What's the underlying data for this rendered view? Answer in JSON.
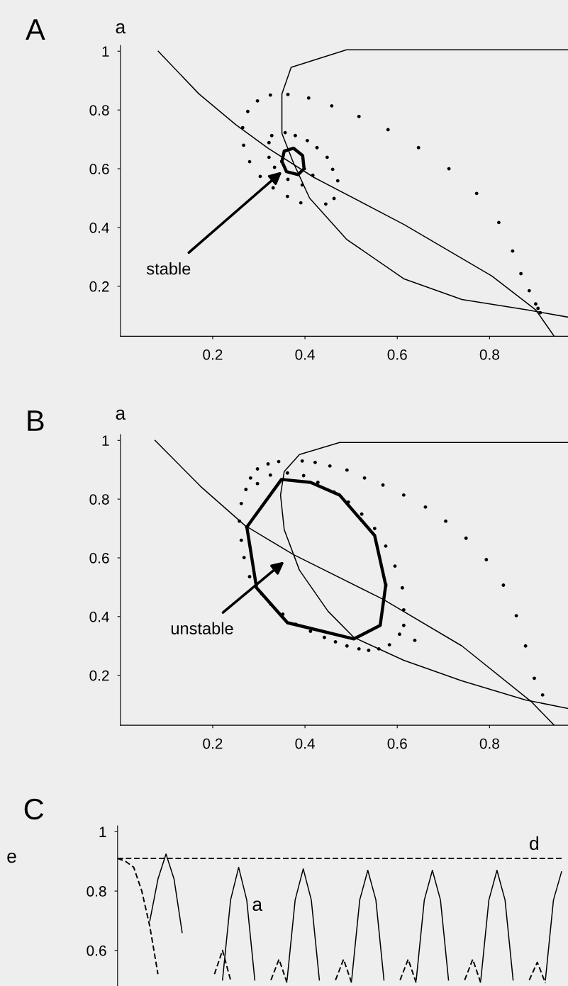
{
  "chart_data": [
    {
      "type": "line",
      "title": "A",
      "ylabel": "a",
      "xlim": [
        0,
        0.97
      ],
      "ylim": [
        0.03,
        1.02
      ],
      "xticks": [
        0.2,
        0.4,
        0.6,
        0.8
      ],
      "yticks": [
        0.2,
        0.4,
        0.6,
        0.8,
        1
      ],
      "annotations": [
        {
          "text": "stable",
          "x": 0.35,
          "y": 0.59
        }
      ],
      "series": [
        {
          "color": "#000000",
          "x": [
            0.082,
            0.17,
            0.25,
            0.32,
            0.42,
            0.615,
            0.805,
            0.9,
            0.94
          ],
          "values": [
            1.0,
            0.855,
            0.75,
            0.67,
            0.57,
            0.41,
            0.235,
            0.12,
            0.03
          ]
        },
        {
          "color": "#000000",
          "x": [
            0.97,
            0.49,
            0.37,
            0.35,
            0.35,
            0.375,
            0.41,
            0.49,
            0.615,
            0.74,
            0.88,
            0.97
          ],
          "values": [
            1.005,
            1.005,
            0.945,
            0.855,
            0.72,
            0.62,
            0.5,
            0.36,
            0.225,
            0.155,
            0.12,
            0.095
          ]
        },
        {
          "color": "#000000",
          "x": [
            0.35,
            0.355,
            0.375,
            0.395,
            0.398,
            0.35,
            0.36,
            0.385,
            0.398
          ],
          "values": [
            0.625,
            0.66,
            0.67,
            0.645,
            0.6,
            0.625,
            0.59,
            0.58,
            0.6
          ]
        },
        {
          "type": "scatter",
          "marker": "circle",
          "color": "#000000",
          "x": [
            0.91,
            0.905,
            0.9,
            0.886,
            0.868,
            0.85,
            0.82,
            0.772,
            0.712,
            0.646,
            0.58,
            0.517,
            0.458,
            0.408,
            0.363,
            0.325,
            0.297,
            0.276,
            0.265,
            0.267,
            0.28,
            0.303,
            0.331,
            0.362,
            0.391,
            0.445,
            0.463,
            0.471,
            0.46,
            0.448,
            0.426,
            0.405,
            0.379,
            0.357,
            0.328,
            0.322,
            0.322,
            0.334,
            0.363,
            0.394,
            0.417
          ],
          "values": [
            0.11,
            0.125,
            0.14,
            0.185,
            0.243,
            0.32,
            0.417,
            0.516,
            0.6,
            0.672,
            0.733,
            0.778,
            0.814,
            0.841,
            0.853,
            0.851,
            0.831,
            0.795,
            0.74,
            0.68,
            0.624,
            0.574,
            0.535,
            0.506,
            0.484,
            0.48,
            0.499,
            0.559,
            0.598,
            0.639,
            0.672,
            0.696,
            0.713,
            0.723,
            0.713,
            0.689,
            0.639,
            0.605,
            0.564,
            0.545,
            0.578
          ]
        }
      ]
    },
    {
      "type": "line",
      "title": "B",
      "ylabel": "a",
      "xlim": [
        0,
        0.97
      ],
      "ylim": [
        0.03,
        1.02
      ],
      "xticks": [
        0.2,
        0.4,
        0.6,
        0.8
      ],
      "yticks": [
        0.2,
        0.4,
        0.6,
        0.8,
        1
      ],
      "annotations": [
        "unstable"
      ],
      "series": [
        {
          "color": "#000000",
          "x": [
            0.075,
            0.174,
            0.27,
            0.375,
            0.569,
            0.74,
            0.89,
            0.94
          ],
          "values": [
            1.0,
            0.843,
            0.71,
            0.611,
            0.459,
            0.3,
            0.111,
            0.03
          ]
        },
        {
          "color": "#000000",
          "x": [
            0.97,
            0.475,
            0.388,
            0.355,
            0.347,
            0.355,
            0.388,
            0.45,
            0.506,
            0.614,
            0.74,
            0.878,
            0.97
          ],
          "values": [
            0.993,
            0.993,
            0.952,
            0.894,
            0.814,
            0.696,
            0.558,
            0.418,
            0.329,
            0.251,
            0.181,
            0.116,
            0.087
          ]
        },
        {
          "color": "#000000",
          "x": [
            0.274,
            0.349,
            0.412,
            0.475,
            0.551,
            0.575,
            0.274,
            0.295,
            0.362,
            0.506,
            0.563,
            0.575
          ],
          "values": [
            0.705,
            0.867,
            0.857,
            0.814,
            0.676,
            0.507,
            0.705,
            0.498,
            0.379,
            0.324,
            0.37,
            0.507
          ]
        },
        {
          "type": "scatter",
          "marker": "circle",
          "color": "#000000",
          "x": [
            0.915,
            0.897,
            0.878,
            0.858,
            0.83,
            0.793,
            0.749,
            0.705,
            0.661,
            0.614,
            0.569,
            0.529,
            0.491,
            0.454,
            0.422,
            0.394,
            0.343,
            0.32,
            0.297,
            0.282,
            0.272,
            0.262,
            0.258,
            0.262,
            0.268,
            0.28,
            0.306,
            0.326,
            0.352,
            0.38,
            0.412,
            0.442,
            0.466,
            0.491,
            0.517,
            0.538,
            0.56,
            0.583,
            0.605,
            0.614,
            0.614,
            0.611,
            0.595,
            0.575,
            0.551,
            0.523,
            0.494,
            0.463,
            0.428,
            0.397,
            0.362,
            0.325,
            0.297,
            0.638
          ],
          "values": [
            0.133,
            0.19,
            0.3,
            0.403,
            0.507,
            0.594,
            0.667,
            0.725,
            0.773,
            0.814,
            0.848,
            0.872,
            0.899,
            0.913,
            0.925,
            0.93,
            0.928,
            0.92,
            0.903,
            0.872,
            0.833,
            0.785,
            0.725,
            0.66,
            0.601,
            0.536,
            0.478,
            0.442,
            0.408,
            0.374,
            0.35,
            0.329,
            0.314,
            0.3,
            0.29,
            0.285,
            0.29,
            0.304,
            0.34,
            0.37,
            0.423,
            0.498,
            0.572,
            0.64,
            0.7,
            0.749,
            0.79,
            0.824,
            0.857,
            0.88,
            0.889,
            0.882,
            0.853,
            0.319
          ]
        }
      ]
    },
    {
      "type": "line",
      "title": "C",
      "ylabel": "e",
      "ylim": [
        0.48,
        1.02
      ],
      "yticks": [
        0.6,
        0.8,
        1
      ],
      "tick_labels": "y",
      "annotations": [
        "a",
        "d"
      ],
      "categories": [
        null,
        null,
        null,
        null,
        null,
        null,
        null,
        null,
        null,
        null,
        null,
        null,
        null,
        null,
        null,
        null,
        null,
        null,
        null,
        null,
        null,
        null,
        null,
        null,
        null,
        null,
        null,
        null,
        null,
        null,
        null,
        null,
        null,
        null,
        null,
        null,
        null,
        null,
        null,
        null,
        null,
        null,
        null,
        null,
        null,
        null,
        null,
        null,
        null,
        null,
        null,
        null,
        null,
        null,
        null,
        null
      ],
      "series": [
        {
          "color": "#000000",
          "values": [
            null,
            null,
            null,
            null,
            0.7,
            0.84,
            0.925,
            0.84,
            0.66,
            null,
            null,
            null,
            null,
            0.5,
            0.77,
            0.88,
            0.77,
            0.5,
            null,
            null,
            null,
            0.5,
            0.77,
            0.875,
            0.77,
            0.5,
            null,
            null,
            null,
            0.5,
            0.77,
            0.87,
            0.77,
            0.5,
            null,
            null,
            null,
            0.5,
            0.77,
            0.87,
            0.77,
            0.5,
            null,
            null,
            null,
            0.5,
            0.77,
            0.87,
            0.77,
            0.5,
            null,
            null,
            null,
            0.5,
            0.77,
            0.865
          ]
        },
        {
          "color": "#000000",
          "line_style": "dashed",
          "values": [
            0.91,
            0.91,
            0.91,
            0.91,
            0.91,
            0.91,
            0.91,
            0.91,
            0.91,
            0.91,
            0.91,
            0.91,
            0.91,
            0.91,
            0.91,
            0.91,
            0.91,
            0.91,
            0.91,
            0.91,
            0.91,
            0.91,
            0.91,
            0.91,
            0.91,
            0.91,
            0.91,
            0.91,
            0.91,
            0.91,
            0.91,
            0.91,
            0.91,
            0.91,
            0.91,
            0.91,
            0.91,
            0.91,
            0.91,
            0.91,
            0.91,
            0.91,
            0.91,
            0.91,
            0.91,
            0.91,
            0.91,
            0.91,
            0.91,
            0.91,
            0.91,
            0.91,
            0.91,
            0.91,
            0.91,
            0.91
          ]
        },
        {
          "color": "#000000",
          "line_style": "dashed",
          "values": [
            0.91,
            0.9,
            0.88,
            0.8,
            0.68,
            0.52,
            null,
            null,
            null,
            null,
            null,
            null,
            0.52,
            0.6,
            0.5,
            null,
            null,
            null,
            null,
            0.5,
            0.57,
            0.49,
            null,
            null,
            null,
            null,
            null,
            0.5,
            0.57,
            0.49,
            null,
            null,
            null,
            null,
            null,
            0.5,
            0.57,
            0.49,
            null,
            null,
            null,
            null,
            null,
            0.5,
            0.57,
            0.49,
            null,
            null,
            null,
            null,
            null,
            0.5,
            0.56,
            0.49,
            null,
            null
          ]
        }
      ]
    }
  ]
}
